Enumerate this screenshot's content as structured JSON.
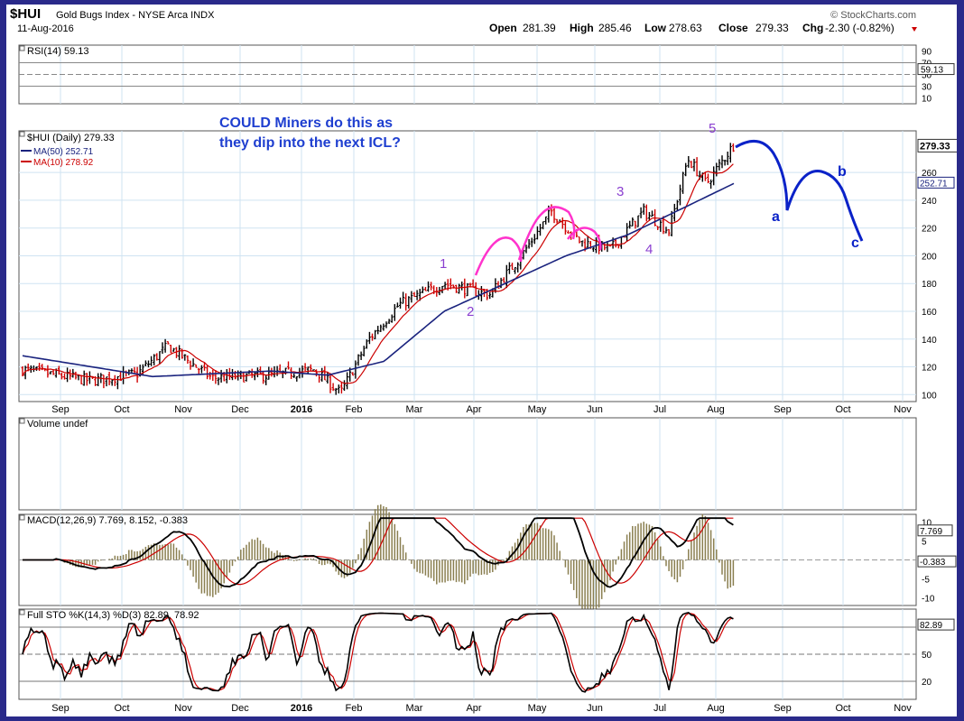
{
  "header": {
    "symbol": "$HUI",
    "name": "Gold Bugs Index - NYSE Arca INDX",
    "date": "11-Aug-2016",
    "brand": "© StockCharts.com",
    "quote": {
      "open_label": "Open",
      "open": "281.39",
      "high_label": "High",
      "high": "285.46",
      "low_label": "Low",
      "low": "278.63",
      "close_label": "Close",
      "close": "279.33",
      "chg_label": "Chg",
      "chg": "-2.30 (-0.82%)"
    }
  },
  "annotation": {
    "line1": "COULD Miners do this as",
    "line2": "they dip into the next  ICL?",
    "text_color": "#1f3fd0"
  },
  "colors": {
    "price_up": "#000000",
    "price_down": "#d00000",
    "ma50": "#1a237e",
    "ma10": "#cc0000",
    "projection": "#0a22c8",
    "wave_labels": "#8a3fd0",
    "arcs": "#ff33cc",
    "grid": "#cfe3f2",
    "panel_bg": "#ffffff"
  },
  "chart_data": [
    {
      "type": "line",
      "panel": "RSI",
      "title": "RSI(14) 59.13",
      "series": [
        {
          "name": "RSI(14)",
          "last": 59.13
        }
      ],
      "ylim": [
        0,
        100
      ],
      "levels": [
        70,
        30
      ],
      "tick_labels": [
        "90",
        "70",
        "50",
        "59.13",
        "30",
        "10"
      ]
    },
    {
      "type": "bar",
      "panel": "Price",
      "title": "$HUI (Daily) 279.33",
      "legend": [
        {
          "name": "$HUI (Daily)",
          "value": "279.33"
        },
        {
          "name": "MA(50)",
          "value": "252.71"
        },
        {
          "name": "MA(10)",
          "value": "278.92"
        }
      ],
      "y_tick_labels": [
        "279.33",
        "260",
        "252.71",
        "240",
        "220",
        "200",
        "180",
        "160",
        "140",
        "120",
        "100"
      ],
      "ylim": [
        95,
        290
      ],
      "x_tick_labels": [
        "Sep",
        "Oct",
        "Nov",
        "Dec",
        "2016",
        "Feb",
        "Mar",
        "Apr",
        "May",
        "Jun",
        "Jul",
        "Aug",
        "Sep",
        "Oct",
        "Nov"
      ],
      "anchors": [
        {
          "x": "Aug 2015",
          "y": 118
        },
        {
          "x": "Sep 2015",
          "y": 110
        },
        {
          "x": "Oct 2015",
          "y": 115
        },
        {
          "x": "Oct 2015",
          "y": 135
        },
        {
          "x": "Nov 2015",
          "y": 112
        },
        {
          "x": "Dec 2015",
          "y": 114
        },
        {
          "x": "Jan 2016",
          "y": 118
        },
        {
          "x": "Jan 2016",
          "y": 101
        },
        {
          "x": "Feb 2016",
          "y": 140
        },
        {
          "x": "Feb 2016",
          "y": 165
        },
        {
          "x": "Mar 2016",
          "y": 180
        },
        {
          "x": "Apr 2016",
          "y": 172
        },
        {
          "x": "Apr 2016",
          "y": 200
        },
        {
          "x": "May 2016",
          "y": 232
        },
        {
          "x": "May 2016",
          "y": 210
        },
        {
          "x": "Jun 2016",
          "y": 205
        },
        {
          "x": "Jun 2016",
          "y": 232
        },
        {
          "x": "Jul 2016",
          "y": 218
        },
        {
          "x": "Jul 2016",
          "y": 270
        },
        {
          "x": "Jul 2016",
          "y": 252
        },
        {
          "x": "Aug 2016",
          "y": 282
        }
      ],
      "ma50_anchors": [
        {
          "x": "Aug 2015",
          "y": 128
        },
        {
          "x": "Oct 2015",
          "y": 113
        },
        {
          "x": "Dec 2015",
          "y": 117
        },
        {
          "x": "Jan 2016",
          "y": 114
        },
        {
          "x": "Feb 2016",
          "y": 124
        },
        {
          "x": "Mar 2016",
          "y": 160
        },
        {
          "x": "May 2016",
          "y": 200
        },
        {
          "x": "Jun 2016",
          "y": 215
        },
        {
          "x": "Jul 2016",
          "y": 236
        },
        {
          "x": "Aug 2016",
          "y": 252.71
        }
      ],
      "wave_labels": [
        "1",
        "2",
        "3",
        "4",
        "5"
      ],
      "projection_labels": [
        "a",
        "b",
        "c"
      ]
    },
    {
      "type": "bar",
      "panel": "Volume",
      "title": "Volume undef"
    },
    {
      "type": "line",
      "panel": "MACD",
      "title": "MACD(12,26,9) 7.769, 8.152, -0.383",
      "series": [
        {
          "name": "MACD",
          "last": 7.769
        },
        {
          "name": "Signal",
          "last": 8.152
        },
        {
          "name": "Histogram",
          "last": -0.383
        }
      ],
      "ylim": [
        -12,
        12
      ],
      "tick_labels": [
        "10",
        "7.769",
        "5",
        "-0.383",
        "-5",
        "-10"
      ]
    },
    {
      "type": "line",
      "panel": "Full STO",
      "title": "Full STO %K(14,3) %D(3) 82.89, 78.92",
      "series": [
        {
          "name": "%K(14,3)",
          "last": 82.89
        },
        {
          "name": "%D(3)",
          "last": 78.92
        }
      ],
      "ylim": [
        0,
        100
      ],
      "levels": [
        80,
        20
      ],
      "tick_labels": [
        "82.89",
        "50",
        "20"
      ]
    }
  ]
}
